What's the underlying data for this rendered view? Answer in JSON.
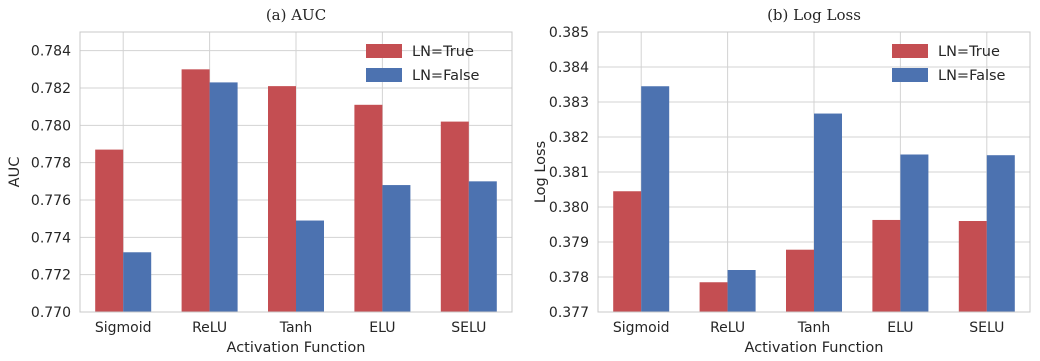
{
  "chart_data": [
    {
      "type": "bar",
      "title": "(a)  AUC",
      "xlabel": "Activation Function",
      "ylabel": "AUC",
      "categories": [
        "Sigmoid",
        "ReLU",
        "Tanh",
        "ELU",
        "SELU"
      ],
      "ylim": [
        0.77,
        0.785
      ],
      "yticks": [
        "0.770",
        "0.772",
        "0.774",
        "0.776",
        "0.778",
        "0.780",
        "0.782",
        "0.784"
      ],
      "grid": true,
      "legend_position": "top-right",
      "series": [
        {
          "name": "LN=True",
          "color": "#c44e52",
          "values": [
            0.7787,
            0.783,
            0.7821,
            0.7811,
            0.7802
          ]
        },
        {
          "name": "LN=False",
          "color": "#4c72b0",
          "values": [
            0.7732,
            0.7823,
            0.7749,
            0.7768,
            0.777
          ]
        }
      ]
    },
    {
      "type": "bar",
      "title": "(b)  Log Loss",
      "xlabel": "Activation Function",
      "ylabel": "Log Loss",
      "categories": [
        "Sigmoid",
        "ReLU",
        "Tanh",
        "ELU",
        "SELU"
      ],
      "ylim": [
        0.377,
        0.385
      ],
      "yticks": [
        "0.377",
        "0.378",
        "0.379",
        "0.380",
        "0.381",
        "0.382",
        "0.383",
        "0.384",
        "0.385"
      ],
      "grid": true,
      "legend_position": "top-right",
      "series": [
        {
          "name": "LN=True",
          "color": "#c44e52",
          "values": [
            0.38045,
            0.37785,
            0.37878,
            0.37963,
            0.3796
          ]
        },
        {
          "name": "LN=False",
          "color": "#4c72b0",
          "values": [
            0.38345,
            0.3782,
            0.38267,
            0.3815,
            0.38148
          ]
        }
      ]
    }
  ]
}
